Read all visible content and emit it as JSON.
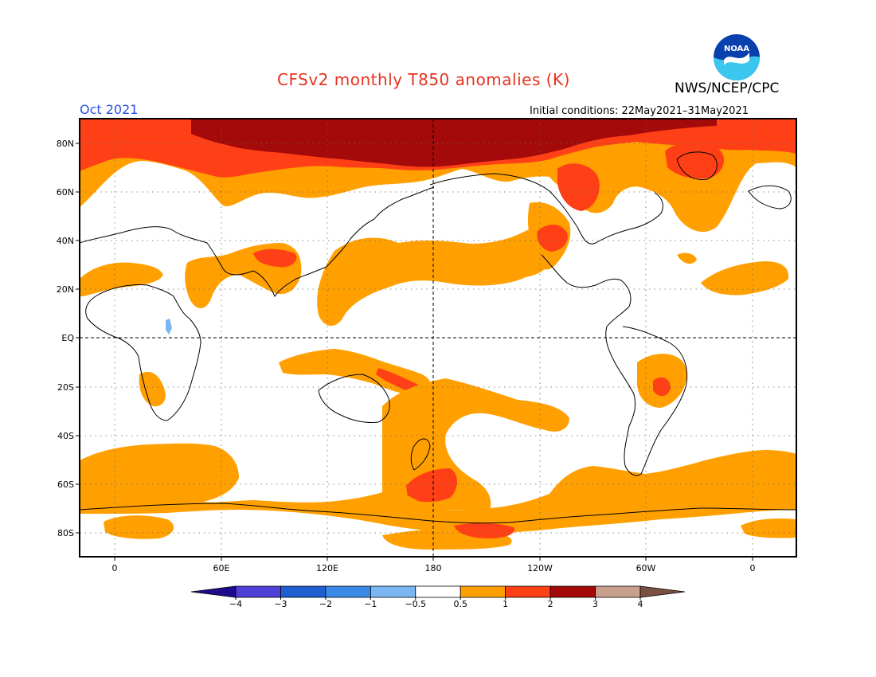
{
  "header": {
    "title": "CFSv2 monthly T850 anomalies (K)",
    "org": "NWS/NCEP/CPC",
    "month": "Oct 2021",
    "initial_conditions": "Initial conditions: 22May2021–31May2021",
    "logo_text": "NOAA"
  },
  "map": {
    "lat_labels": [
      "80N",
      "60N",
      "40N",
      "20N",
      "EQ",
      "20S",
      "40S",
      "60S",
      "80S"
    ],
    "lon_labels": [
      "0",
      "60E",
      "120E",
      "180",
      "120W",
      "60W",
      "0"
    ]
  },
  "colorbar": {
    "tick_labels": [
      "−4",
      "−3",
      "−2",
      "−1",
      "−0.5",
      "0.5",
      "1",
      "2",
      "3",
      "4"
    ],
    "colors": [
      "#1e0a8c",
      "#4e3fd6",
      "#1f5fd0",
      "#3c8ae8",
      "#7ab7f2",
      "#ffffff",
      "#ffa000",
      "#ff4016",
      "#a50a0a",
      "#c8a08c",
      "#7a5040"
    ]
  },
  "colors": {
    "anom_0_5_1": "#ffa000",
    "anom_1_2": "#ff4016",
    "anom_2_3": "#a50a0a",
    "anom_neg": "#7ab7f2",
    "title": "#e8321e",
    "month": "#2a4fe6"
  }
}
